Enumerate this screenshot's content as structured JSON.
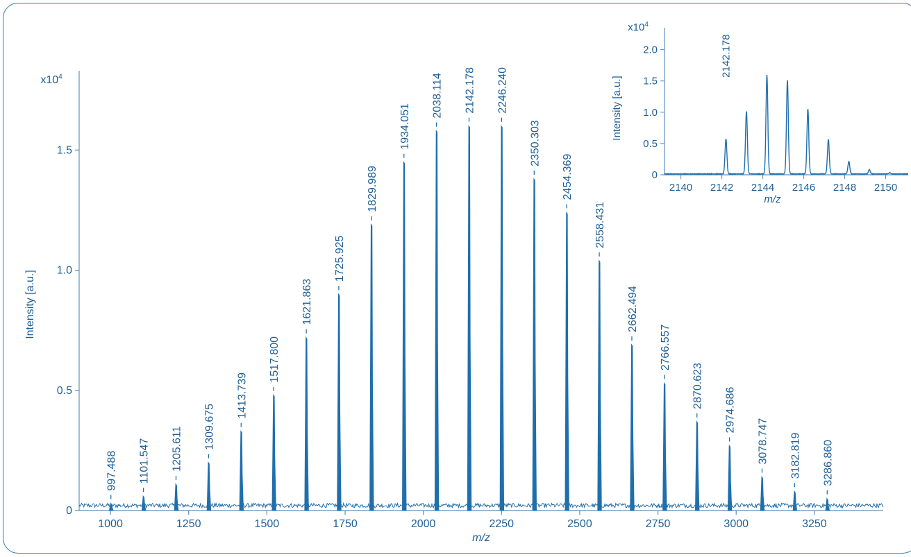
{
  "colors": {
    "trace": "#1f6fad",
    "axis": "#5f8fb8",
    "text": "#1e5f96",
    "frame": "#2a78b4"
  },
  "chart_data": [
    {
      "type": "line",
      "description": "MALDI mass spectrum, polymer distribution",
      "xlabel": "m/z",
      "ylabel": "Intensity [a.u.]",
      "y_multiplier": "x10⁴",
      "xlim": [
        900,
        3470
      ],
      "ylim": [
        0,
        1.83
      ],
      "x_ticks": [
        1000,
        1250,
        1500,
        1750,
        2000,
        2250,
        2500,
        2750,
        3000,
        3250
      ],
      "x_tick_labels": [
        "1000",
        "1250",
        "1500",
        "1750",
        "2000",
        "2250",
        "2500",
        "2750",
        "3000",
        "3250"
      ],
      "y_ticks": [
        0,
        0.5,
        1.0,
        1.5
      ],
      "y_tick_labels": [
        "0",
        "0.5",
        "1.0",
        "1.5"
      ],
      "peaks": [
        {
          "mz": 1001.5,
          "label": "997.488",
          "intensity": 0.03
        },
        {
          "mz": 1105.5,
          "label": "1101.547",
          "intensity": 0.06
        },
        {
          "mz": 1209.6,
          "label": "1205.611",
          "intensity": 0.11
        },
        {
          "mz": 1313.7,
          "label": "1309.675",
          "intensity": 0.2
        },
        {
          "mz": 1417.7,
          "label": "1413.739",
          "intensity": 0.33
        },
        {
          "mz": 1521.8,
          "label": "1517.800",
          "intensity": 0.48
        },
        {
          "mz": 1625.9,
          "label": "1621.863",
          "intensity": 0.72
        },
        {
          "mz": 1729.9,
          "label": "1725.925",
          "intensity": 0.9
        },
        {
          "mz": 1834.0,
          "label": "1829.989",
          "intensity": 1.19
        },
        {
          "mz": 1938.1,
          "label": "1934.051",
          "intensity": 1.45
        },
        {
          "mz": 2042.1,
          "label": "2038.114",
          "intensity": 1.58
        },
        {
          "mz": 2146.2,
          "label": "2142.178",
          "intensity": 1.6
        },
        {
          "mz": 2250.2,
          "label": "2246.240",
          "intensity": 1.6
        },
        {
          "mz": 2354.3,
          "label": "2350.303",
          "intensity": 1.38
        },
        {
          "mz": 2458.4,
          "label": "2454.369",
          "intensity": 1.24
        },
        {
          "mz": 2562.4,
          "label": "2558.431",
          "intensity": 1.04
        },
        {
          "mz": 2666.5,
          "label": "2662.494",
          "intensity": 0.69
        },
        {
          "mz": 2770.6,
          "label": "2766.557",
          "intensity": 0.53
        },
        {
          "mz": 2874.6,
          "label": "2870.623",
          "intensity": 0.37
        },
        {
          "mz": 2978.7,
          "label": "2974.686",
          "intensity": 0.27
        },
        {
          "mz": 3082.7,
          "label": "3078.747",
          "intensity": 0.14
        },
        {
          "mz": 3186.8,
          "label": "3182.819",
          "intensity": 0.08
        },
        {
          "mz": 3290.9,
          "label": "3286.860",
          "intensity": 0.05
        }
      ],
      "grid": false
    },
    {
      "type": "line",
      "description": "Inset: zoom on isotope pattern of 2142.178",
      "xlabel": "m/z",
      "ylabel": "Intensity [a.u.]",
      "y_multiplier": "x10⁴",
      "xlim": [
        2139.2,
        2151.1
      ],
      "ylim": [
        0,
        2.35
      ],
      "x_ticks": [
        2140,
        2142,
        2144,
        2146,
        2148,
        2150
      ],
      "x_tick_labels": [
        "2140",
        "2142",
        "2144",
        "2146",
        "2148",
        "2150"
      ],
      "y_ticks": [
        0,
        0.5,
        1.0,
        1.5,
        2.0
      ],
      "y_tick_labels": [
        "0",
        "0.5",
        "1.0",
        "1.5",
        "2.0"
      ],
      "peak_label": "2142.178",
      "peaks": [
        {
          "mz": 2142.2,
          "intensity": 0.56
        },
        {
          "mz": 2143.2,
          "intensity": 1.0
        },
        {
          "mz": 2144.2,
          "intensity": 1.58
        },
        {
          "mz": 2145.2,
          "intensity": 1.5
        },
        {
          "mz": 2146.2,
          "intensity": 1.04
        },
        {
          "mz": 2147.2,
          "intensity": 0.55
        },
        {
          "mz": 2148.2,
          "intensity": 0.2
        },
        {
          "mz": 2149.2,
          "intensity": 0.07
        },
        {
          "mz": 2150.2,
          "intensity": 0.02
        }
      ],
      "grid": false
    }
  ]
}
